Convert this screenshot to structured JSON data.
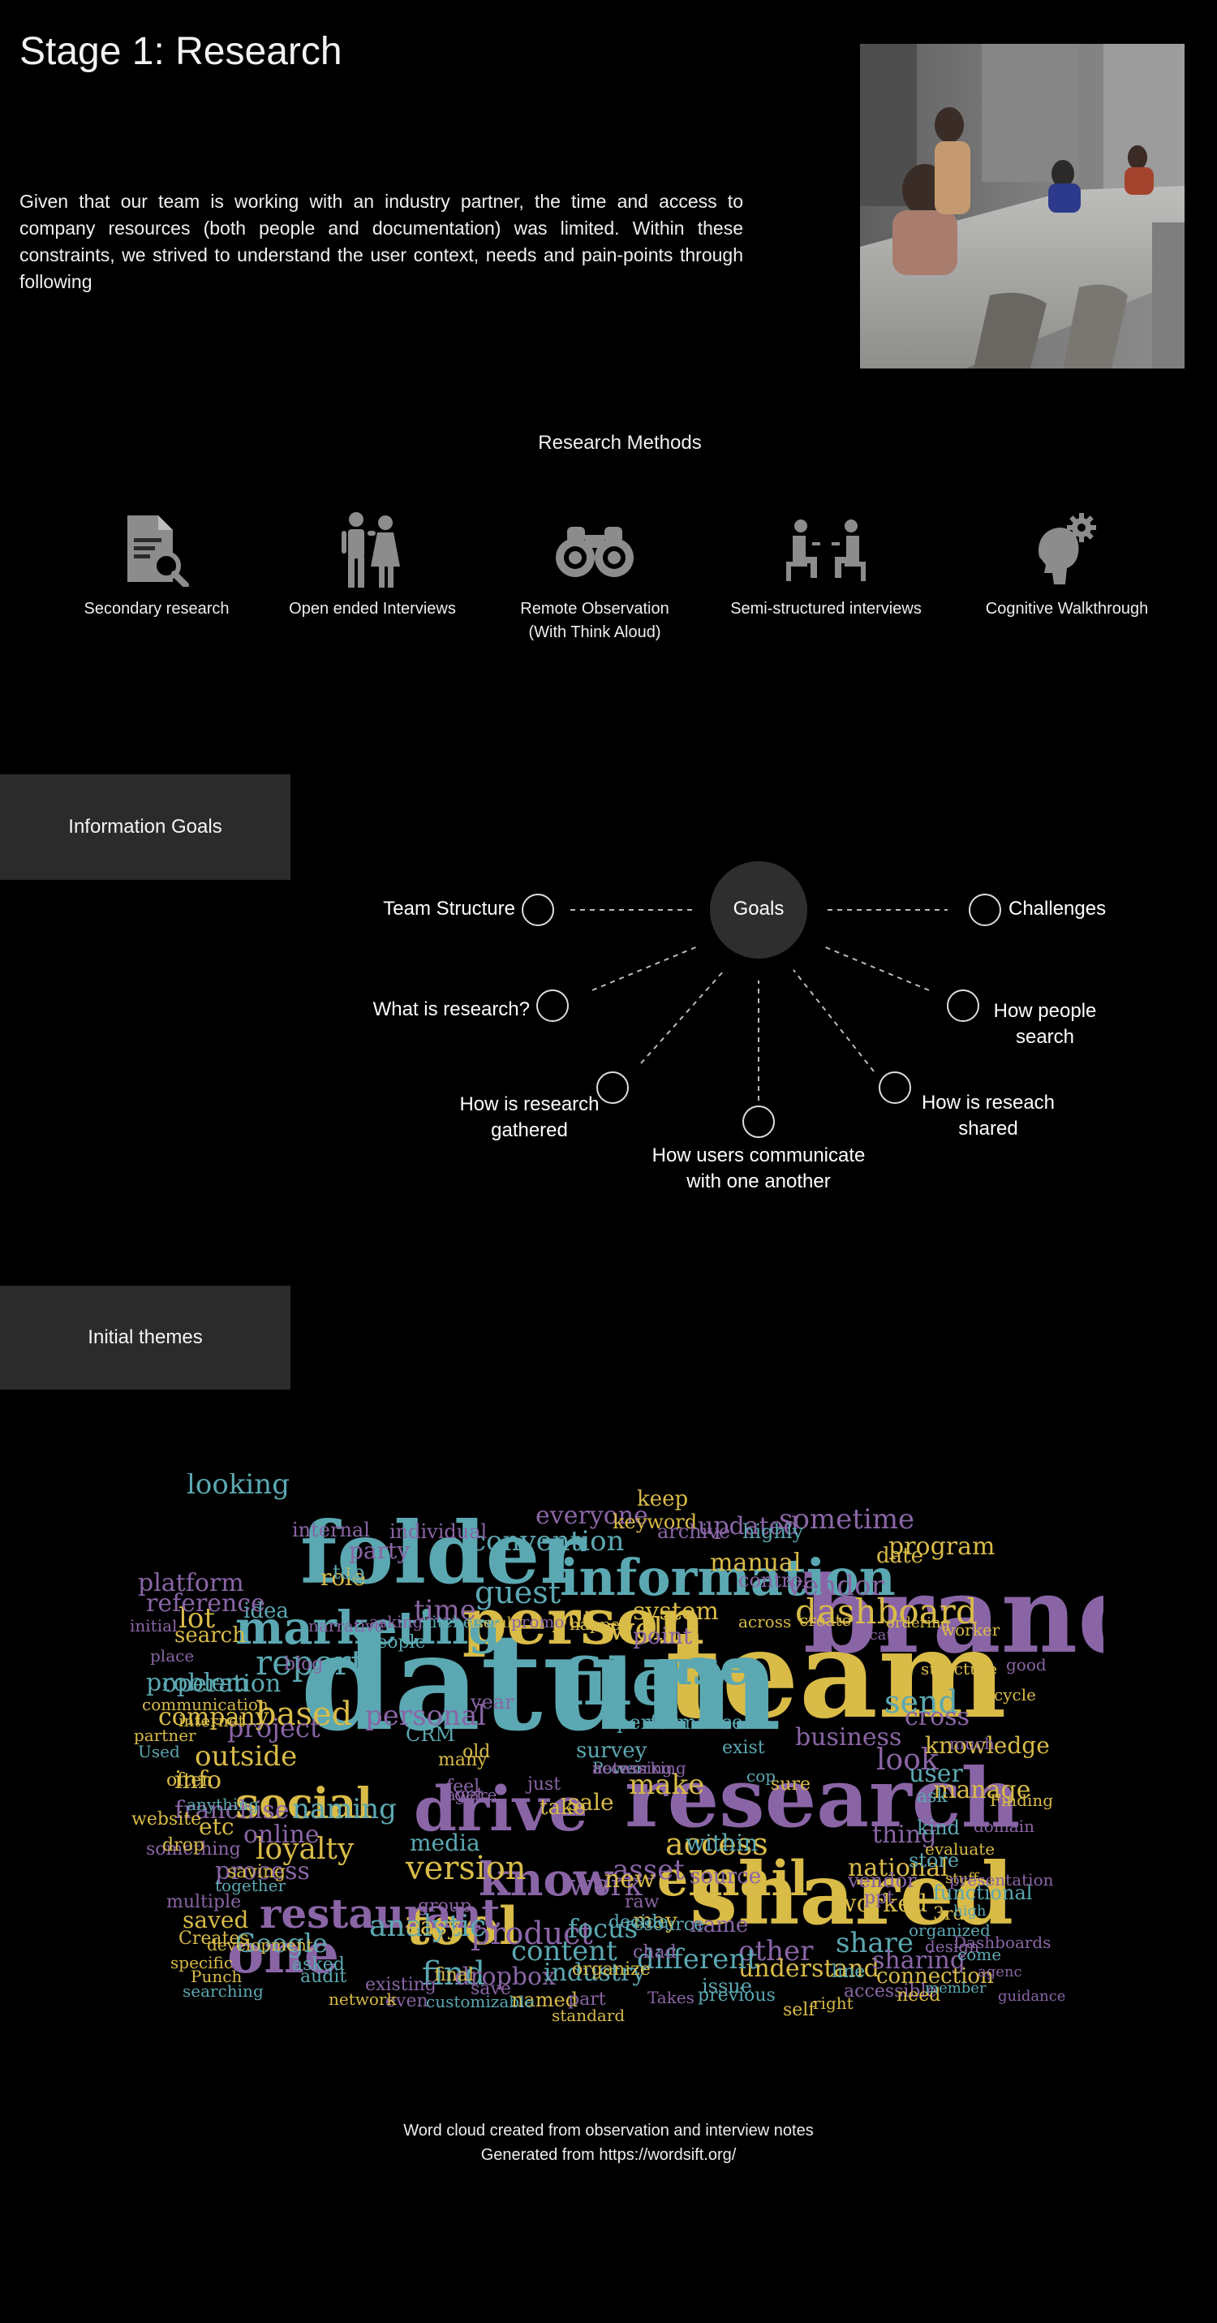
{
  "page": {
    "title": "Stage 1: Research",
    "intro": "Given that our team is working with an industry partner, the time and access to company resources (both people and documentation) was limited. Within these constraints, we strived to understand the user context, needs and pain-points through following"
  },
  "methods": {
    "title": "Research Methods",
    "items": [
      {
        "label": "Secondary research",
        "icon": "document-search-icon"
      },
      {
        "label": "Open ended Interviews",
        "icon": "people-talking-icon"
      },
      {
        "label": "Remote Observation\n(With Think Aloud)",
        "icon": "binoculars-icon"
      },
      {
        "label": "Semi-structured interviews",
        "icon": "seated-interview-icon"
      },
      {
        "label": "Cognitive Walkthrough",
        "icon": "head-gear-icon"
      }
    ]
  },
  "information_goals": {
    "heading": "Information Goals",
    "center": "Goals",
    "nodes": [
      "Team Structure",
      "Challenges",
      "What is research?",
      "How people\nsearch",
      "How is research\ngathered",
      "How users communicate\nwith one another",
      "How is reseach\nshared"
    ]
  },
  "themes": {
    "heading": "Initial themes",
    "colors": {
      "teal": "#5ba8b2",
      "purple": "#8a65a6",
      "gold": "#d9bb48"
    },
    "words": [
      [
        "team",
        "gold"
      ],
      [
        "brand",
        "purple"
      ],
      [
        "datum",
        "teal"
      ],
      [
        "folder",
        "teal"
      ],
      [
        "shared",
        "gold"
      ],
      [
        "research",
        "purple"
      ],
      [
        "person",
        "gold"
      ],
      [
        "marketing",
        "teal"
      ],
      [
        "information",
        "teal"
      ],
      [
        "file",
        "teal"
      ],
      [
        "drive",
        "purple"
      ],
      [
        "email",
        "gold"
      ],
      [
        "use",
        "teal"
      ],
      [
        "know",
        "purple"
      ],
      [
        "one",
        "purple"
      ],
      [
        "tool",
        "gold"
      ],
      [
        "social",
        "gold"
      ],
      [
        "restaurant",
        "purple"
      ],
      [
        "report",
        "teal"
      ],
      [
        "dashboard",
        "gold"
      ],
      [
        "guest",
        "teal"
      ],
      [
        "access",
        "gold"
      ],
      [
        "version",
        "gold"
      ],
      [
        "product",
        "purple"
      ],
      [
        "time",
        "purple"
      ],
      [
        "personal",
        "purple"
      ],
      [
        "convention",
        "teal"
      ],
      [
        "looking",
        "teal"
      ],
      [
        "business",
        "purple"
      ],
      [
        "media",
        "teal"
      ],
      [
        "well",
        "gold"
      ],
      [
        "analytic",
        "teal"
      ],
      [
        "find",
        "teal"
      ],
      [
        "content",
        "teal"
      ],
      [
        "work",
        "purple"
      ],
      [
        "asset",
        "purple"
      ],
      [
        "make",
        "gold"
      ],
      [
        "sometime",
        "purple"
      ],
      [
        "program",
        "gold"
      ],
      [
        "vendor",
        "purple"
      ],
      [
        "send",
        "teal"
      ],
      [
        "look",
        "purple"
      ],
      [
        "user",
        "teal"
      ],
      [
        "outside",
        "gold"
      ],
      [
        "based",
        "gold"
      ],
      [
        "project",
        "purple"
      ],
      [
        "naming",
        "teal"
      ],
      [
        "loyalty",
        "gold"
      ],
      [
        "online",
        "purple"
      ],
      [
        "franchise",
        "purple"
      ],
      [
        "operation",
        "teal"
      ],
      [
        "company",
        "gold"
      ],
      [
        "lot",
        "gold"
      ],
      [
        "idea",
        "teal"
      ],
      [
        "put",
        "gold"
      ],
      [
        "system",
        "gold"
      ],
      [
        "everyone",
        "purple"
      ],
      [
        "updated",
        "purple"
      ],
      [
        "keep",
        "gold"
      ],
      [
        "manual",
        "gold"
      ],
      [
        "date",
        "gold"
      ],
      [
        "cross",
        "purple"
      ],
      [
        "knowledge",
        "gold"
      ],
      [
        "manage",
        "gold"
      ],
      [
        "thing",
        "purple"
      ],
      [
        "national",
        "gold"
      ],
      [
        "worked",
        "gold"
      ],
      [
        "share",
        "teal"
      ],
      [
        "other",
        "purple"
      ],
      [
        "understand",
        "gold"
      ],
      [
        "different",
        "teal"
      ],
      [
        "focus",
        "teal"
      ],
      [
        "Google",
        "teal"
      ],
      [
        "easy",
        "gold"
      ],
      [
        "dropbox",
        "purple"
      ],
      [
        "industry",
        "teal"
      ],
      [
        "sharing",
        "purple"
      ],
      [
        "connection",
        "gold"
      ],
      [
        "problem",
        "teal"
      ],
      [
        "reference",
        "purple"
      ],
      [
        "platform",
        "purple"
      ],
      [
        "search",
        "gold"
      ],
      [
        "info",
        "gold"
      ],
      [
        "process",
        "purple"
      ],
      [
        "saved",
        "gold"
      ],
      [
        "etc",
        "gold"
      ],
      [
        "within",
        "teal"
      ],
      [
        "source",
        "purple"
      ],
      [
        "name",
        "purple"
      ],
      [
        "new",
        "gold"
      ],
      [
        "may",
        "gold"
      ],
      [
        "point",
        "purple"
      ],
      [
        "sale",
        "gold"
      ],
      [
        "survey",
        "teal"
      ],
      [
        "take",
        "gold"
      ],
      [
        "role",
        "gold"
      ],
      [
        "party",
        "purple"
      ],
      [
        "individual",
        "purple"
      ],
      [
        "keyword",
        "gold"
      ],
      [
        "archive",
        "purple"
      ],
      [
        "highly",
        "teal"
      ],
      [
        "control",
        "purple"
      ],
      [
        "ask",
        "teal"
      ],
      [
        "kind",
        "teal"
      ],
      [
        "store",
        "teal"
      ],
      [
        "vendor",
        "purple"
      ],
      [
        "ppt",
        "purple"
      ],
      [
        "3rd",
        "gold"
      ],
      [
        "functional",
        "teal"
      ],
      [
        "performance",
        "teal"
      ],
      [
        "year",
        "purple"
      ],
      [
        "CRM",
        "teal"
      ],
      [
        "old",
        "gold"
      ],
      [
        "many",
        "gold"
      ],
      [
        "exist",
        "teal"
      ],
      [
        "cop",
        "teal"
      ],
      [
        "sure",
        "gold"
      ],
      [
        "top",
        "teal"
      ],
      [
        "internal",
        "purple"
      ],
      [
        "blog",
        "purple"
      ],
      [
        "just",
        "purple"
      ],
      [
        "get",
        "purple"
      ],
      [
        "feel",
        "purple"
      ],
      [
        "aware",
        "purple"
      ],
      [
        "group",
        "purple"
      ],
      [
        "final",
        "gold"
      ],
      [
        "save",
        "purple"
      ],
      [
        "named",
        "gold"
      ],
      [
        "organize",
        "gold"
      ],
      [
        "chad",
        "purple"
      ],
      [
        "resource",
        "teal"
      ],
      [
        "decide",
        "teal"
      ],
      [
        "raw",
        "purple"
      ],
      [
        "issue",
        "teal"
      ],
      [
        "line",
        "teal"
      ],
      [
        "accessible",
        "purple"
      ],
      [
        "need",
        "gold"
      ],
      [
        "self",
        "gold"
      ],
      [
        "right",
        "gold"
      ],
      [
        "previous",
        "teal"
      ],
      [
        "Takes",
        "purple"
      ],
      [
        "part",
        "purple"
      ],
      [
        "standard",
        "gold"
      ],
      [
        "even",
        "purple"
      ],
      [
        "customizable",
        "teal"
      ],
      [
        "existing",
        "purple"
      ],
      [
        "network",
        "gold"
      ],
      [
        "audit",
        "teal"
      ],
      [
        "asked",
        "teal"
      ],
      [
        "searching",
        "teal"
      ],
      [
        "Punch",
        "gold"
      ],
      [
        "specific",
        "gold"
      ],
      [
        "development",
        "gold"
      ],
      [
        "Creates",
        "gold"
      ],
      [
        "multiple",
        "purple"
      ],
      [
        "together",
        "teal"
      ],
      [
        "saving",
        "gold"
      ],
      [
        "website",
        "gold"
      ],
      [
        "something",
        "purple"
      ],
      [
        "drop",
        "gold"
      ],
      [
        "often",
        "gold"
      ],
      [
        "anything",
        "teal"
      ],
      [
        "internet",
        "gold"
      ],
      [
        "communication",
        "gold"
      ],
      [
        "partner",
        "gold"
      ],
      [
        "Used",
        "teal"
      ],
      [
        "place",
        "purple"
      ],
      [
        "initial",
        "purple"
      ],
      [
        "narrative",
        "purple"
      ],
      [
        "\"people",
        "teal"
      ],
      [
        "asking",
        "purple"
      ],
      [
        "kitchen",
        "teal"
      ],
      [
        "useful",
        "gold"
      ],
      [
        "promo",
        "purple"
      ],
      [
        "happen",
        "gold"
      ],
      [
        "across",
        "gold"
      ],
      [
        "create",
        "gold"
      ],
      [
        "ordering",
        "gold"
      ],
      [
        "locate",
        "purple"
      ],
      [
        "worker",
        "gold"
      ],
      [
        "structure",
        "gold"
      ],
      [
        "good",
        "purple"
      ],
      [
        "cycle",
        "gold"
      ],
      [
        "much",
        "purple"
      ],
      [
        "Finding",
        "gold"
      ],
      [
        "domain",
        "purple"
      ],
      [
        "evaluate",
        "gold"
      ],
      [
        "stuff",
        "gold"
      ],
      [
        "presentation",
        "purple"
      ],
      [
        "high",
        "teal"
      ],
      [
        "design",
        "purple"
      ],
      [
        "organized",
        "teal"
      ],
      [
        "Dashboards",
        "purple"
      ],
      [
        "come",
        "teal"
      ],
      [
        "agenc",
        "purple"
      ],
      [
        "member",
        "teal"
      ],
      [
        "guidance",
        "purple"
      ],
      [
        "Power",
        "teal"
      ],
      [
        "networking",
        "purple"
      ],
      [
        "accessing",
        "purple"
      ]
    ]
  },
  "caption": {
    "line1": "Word cloud created from observation and interview notes",
    "line2": "Generated from https://wordsift.org/"
  }
}
